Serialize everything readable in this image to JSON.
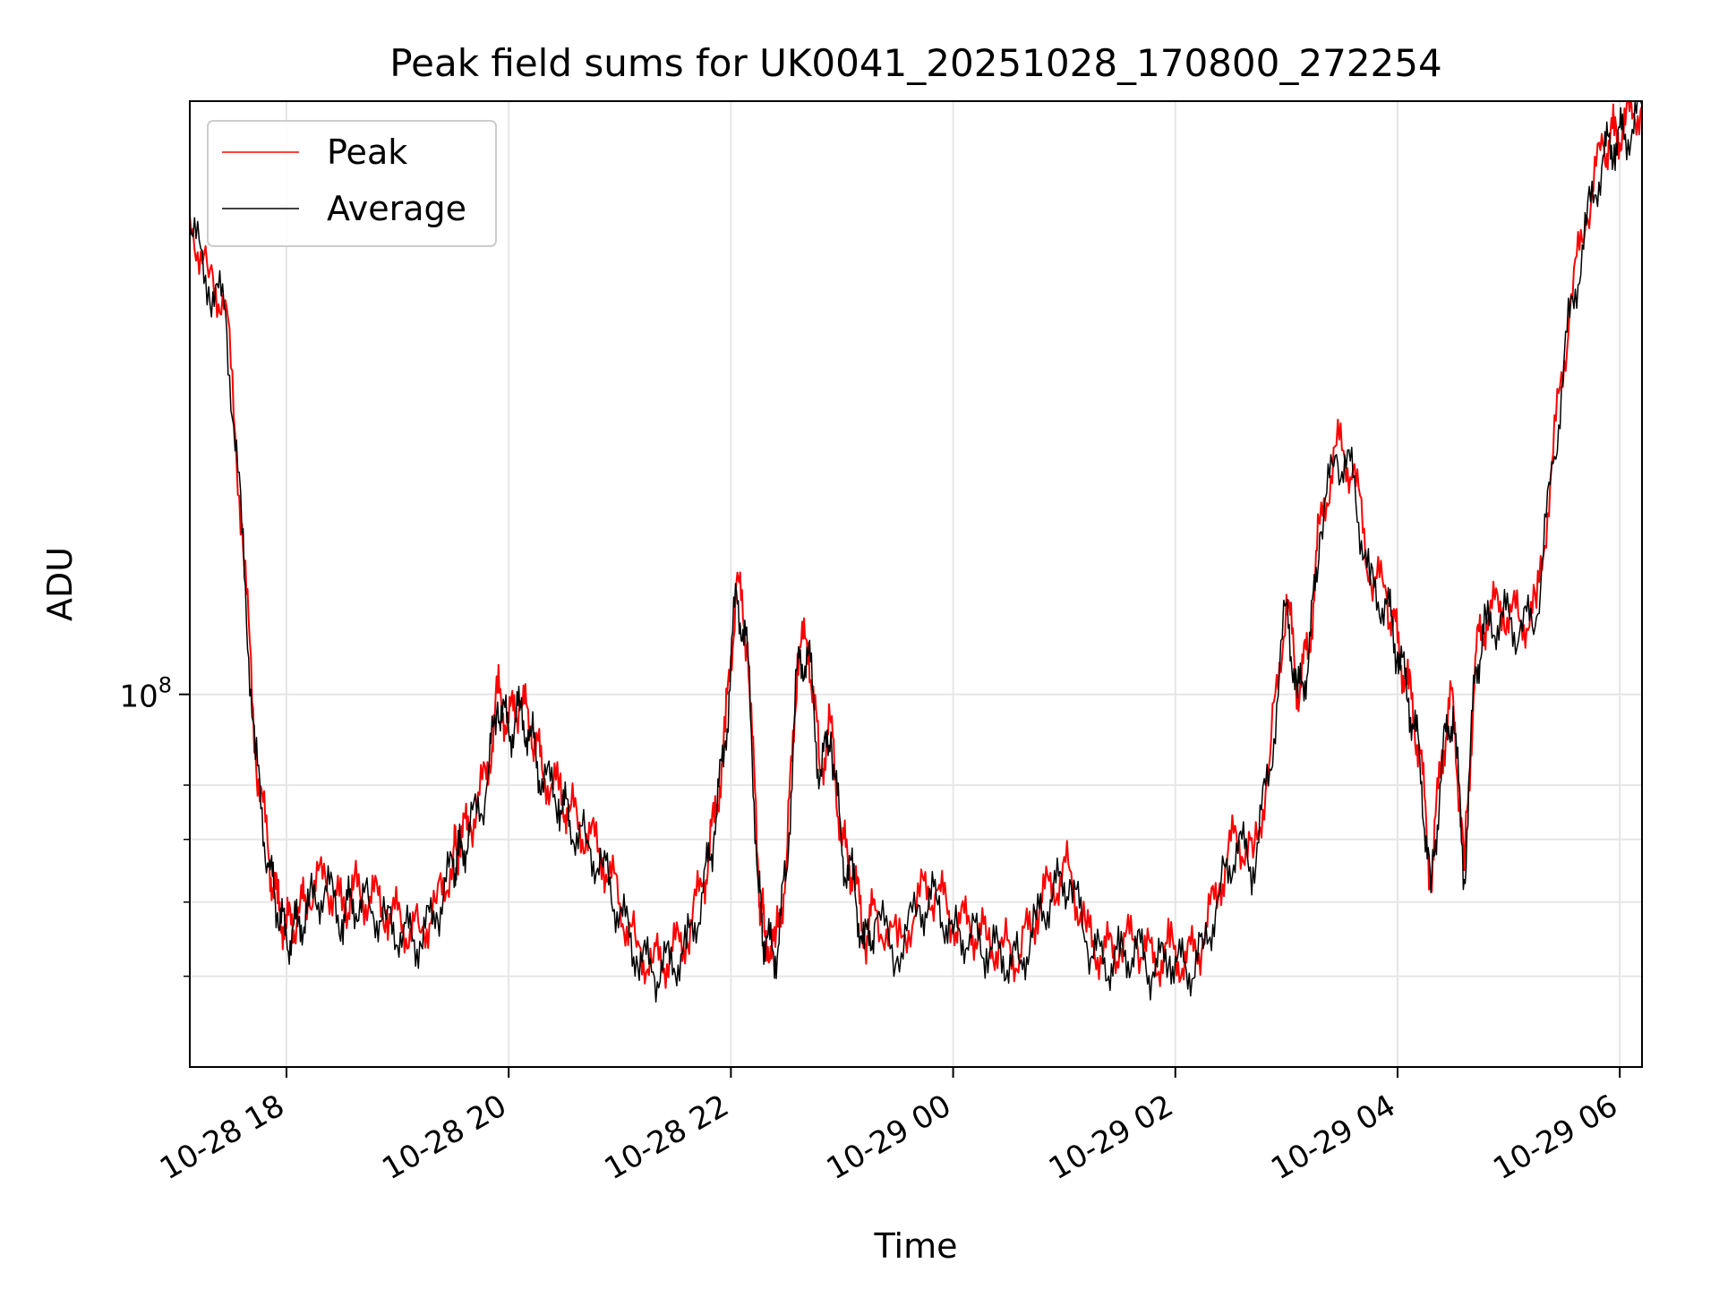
{
  "chart_data": {
    "type": "line",
    "title": "Peak field sums for UK0041_20251028_170800_272254",
    "xlabel": "Time",
    "ylabel": "ADU",
    "yscale": "log",
    "y_major_tick": {
      "value": 100000000,
      "label_base": "10",
      "label_exp": "8"
    },
    "y_minor_ticks": [
      50000000,
      60000000,
      70000000,
      80000000
    ],
    "ylim": [
      40000000,
      430000000
    ],
    "xlim": [
      17.13,
      30.2
    ],
    "x_ticks": [
      {
        "value": 18,
        "label": "10-28 18"
      },
      {
        "value": 20,
        "label": "10-28 20"
      },
      {
        "value": 22,
        "label": "10-28 22"
      },
      {
        "value": 24,
        "label": "10-29 00"
      },
      {
        "value": 26,
        "label": "10-29 02"
      },
      {
        "value": 28,
        "label": "10-29 04"
      },
      {
        "value": 30,
        "label": "10-29 06"
      }
    ],
    "grid": true,
    "legend": {
      "position": "top-left",
      "entries": [
        "Peak",
        "Average"
      ]
    },
    "series": [
      {
        "name": "Peak",
        "color": "#ff0000"
      },
      {
        "name": "Average",
        "color": "#000000"
      }
    ],
    "x": [
      17.13,
      17.3,
      17.45,
      17.6,
      17.72,
      17.84,
      17.92,
      18.0,
      18.1,
      18.2,
      18.35,
      18.5,
      18.6,
      18.75,
      18.9,
      19.05,
      19.2,
      19.35,
      19.5,
      19.55,
      19.65,
      19.8,
      19.9,
      20.0,
      20.1,
      20.2,
      20.3,
      20.45,
      20.55,
      20.7,
      20.85,
      21.0,
      21.15,
      21.3,
      21.45,
      21.6,
      21.75,
      21.85,
      21.95,
      22.05,
      22.15,
      22.25,
      22.3,
      22.4,
      22.5,
      22.6,
      22.7,
      22.8,
      22.9,
      23.0,
      23.1,
      23.2,
      23.3,
      23.5,
      23.7,
      23.85,
      24.0,
      24.15,
      24.3,
      24.45,
      24.6,
      24.75,
      24.9,
      25.05,
      25.2,
      25.35,
      25.5,
      25.65,
      25.8,
      25.95,
      26.1,
      26.25,
      26.4,
      26.55,
      26.7,
      26.85,
      27.0,
      27.1,
      27.2,
      27.3,
      27.45,
      27.6,
      27.75,
      27.9,
      28.0,
      28.1,
      28.2,
      28.3,
      28.4,
      28.5,
      28.6,
      28.7,
      28.8,
      28.95,
      29.1,
      29.25,
      29.4,
      29.55,
      29.7,
      29.85,
      29.95,
      30.05,
      30.2
    ],
    "values": [
      320000000,
      275000000,
      260000000,
      150000000,
      86000000,
      66000000,
      59000000,
      55500000,
      57000000,
      60000000,
      63000000,
      58000000,
      61000000,
      60000000,
      58000000,
      56000000,
      55000000,
      59000000,
      66000000,
      68000000,
      72000000,
      80000000,
      99000000,
      92000000,
      97000000,
      91000000,
      82000000,
      78000000,
      74000000,
      70000000,
      66000000,
      59000000,
      53000000,
      51000000,
      52000000,
      54000000,
      62000000,
      72000000,
      90000000,
      130000000,
      112000000,
      62000000,
      55000000,
      53000000,
      65000000,
      109000000,
      112000000,
      82000000,
      92000000,
      68000000,
      64000000,
      54000000,
      58000000,
      53000000,
      60000000,
      61000000,
      56000000,
      56000000,
      54000000,
      53000000,
      52000000,
      58000000,
      62000000,
      64000000,
      55000000,
      52000000,
      53000000,
      54000000,
      51000000,
      53000000,
      51000000,
      54000000,
      62000000,
      70000000,
      66000000,
      84000000,
      126000000,
      100000000,
      110000000,
      150000000,
      182000000,
      172000000,
      132000000,
      126000000,
      112000000,
      100000000,
      86000000,
      62000000,
      86000000,
      98000000,
      64000000,
      108000000,
      120000000,
      122000000,
      118000000,
      122000000,
      178000000,
      255000000,
      320000000,
      380000000,
      390000000,
      400000000,
      425000000
    ]
  }
}
